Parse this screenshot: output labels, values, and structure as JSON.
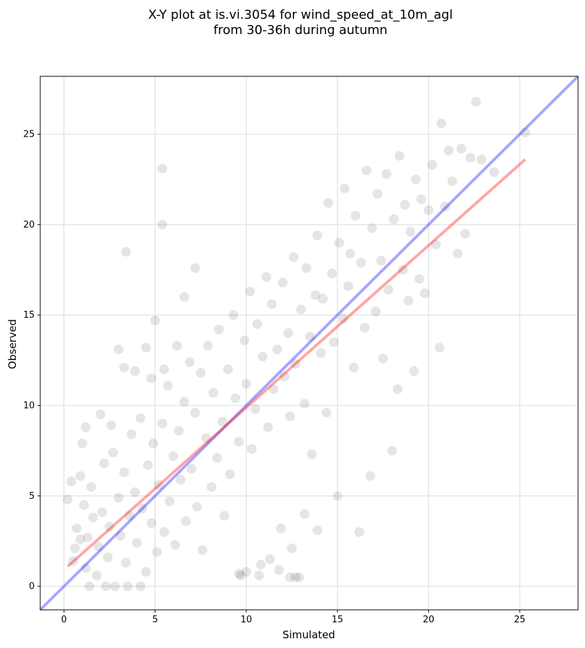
{
  "chart_data": {
    "type": "scatter",
    "title_line1": "X-Y plot at is.vi.3054 for wind_speed_at_10m_agl",
    "title_line2": "from 30-36h during autumn",
    "xlabel": "Simulated",
    "ylabel": "Observed",
    "xlim": [
      -1.3,
      28.2
    ],
    "ylim": [
      -1.3,
      28.2
    ],
    "xticks": [
      0,
      5,
      10,
      15,
      20,
      25
    ],
    "yticks": [
      0,
      5,
      10,
      15,
      20,
      25
    ],
    "grid": true,
    "point_color": "#000000",
    "point_alpha": 0.1,
    "regression_line": {
      "color": "#ff0000",
      "alpha": 0.35,
      "x": [
        0.2,
        25.3
      ],
      "y": [
        1.1,
        23.6
      ]
    },
    "identity_line": {
      "color": "#0000ff",
      "alpha": 0.35,
      "x": [
        -1.3,
        28.2
      ],
      "y": [
        -1.3,
        28.2
      ]
    },
    "points": [
      [
        0.2,
        4.8
      ],
      [
        0.4,
        5.8
      ],
      [
        0.6,
        2.1
      ],
      [
        0.7,
        3.2
      ],
      [
        0.9,
        6.1
      ],
      [
        1.1,
        4.5
      ],
      [
        1.2,
        1.0
      ],
      [
        1.3,
        2.7
      ],
      [
        1.5,
        5.5
      ],
      [
        1.6,
        3.8
      ],
      [
        1.8,
        0.6
      ],
      [
        1.9,
        2.2
      ],
      [
        2.1,
        4.1
      ],
      [
        2.2,
        6.8
      ],
      [
        2.4,
        1.6
      ],
      [
        2.5,
        3.3
      ],
      [
        2.7,
        7.4
      ],
      [
        2.8,
        0.0
      ],
      [
        3.0,
        4.9
      ],
      [
        3.1,
        2.8
      ],
      [
        3.3,
        6.3
      ],
      [
        3.4,
        1.3
      ],
      [
        3.6,
        3.9
      ],
      [
        3.7,
        8.4
      ],
      [
        3.9,
        5.2
      ],
      [
        4.0,
        2.4
      ],
      [
        4.2,
        9.3
      ],
      [
        4.3,
        4.3
      ],
      [
        4.5,
        0.8
      ],
      [
        4.6,
        6.7
      ],
      [
        4.8,
        3.5
      ],
      [
        4.9,
        7.9
      ],
      [
        5.1,
        1.9
      ],
      [
        5.2,
        5.6
      ],
      [
        5.4,
        9.0
      ],
      [
        5.5,
        3.0
      ],
      [
        5.7,
        11.1
      ],
      [
        5.8,
        4.7
      ],
      [
        6.0,
        7.2
      ],
      [
        6.1,
        2.3
      ],
      [
        6.3,
        8.6
      ],
      [
        6.4,
        5.9
      ],
      [
        6.6,
        10.2
      ],
      [
        6.7,
        3.6
      ],
      [
        6.9,
        12.4
      ],
      [
        7.0,
        6.5
      ],
      [
        7.2,
        9.6
      ],
      [
        7.3,
        4.4
      ],
      [
        7.5,
        11.8
      ],
      [
        7.6,
        2.0
      ],
      [
        7.8,
        8.2
      ],
      [
        7.9,
        13.3
      ],
      [
        8.1,
        5.5
      ],
      [
        8.2,
        10.7
      ],
      [
        8.4,
        7.1
      ],
      [
        8.5,
        14.2
      ],
      [
        8.7,
        9.1
      ],
      [
        8.8,
        3.9
      ],
      [
        9.0,
        12.0
      ],
      [
        9.1,
        6.2
      ],
      [
        9.3,
        15.0
      ],
      [
        9.4,
        10.4
      ],
      [
        9.6,
        8.0
      ],
      [
        9.7,
        0.6
      ],
      [
        9.9,
        13.6
      ],
      [
        10.0,
        11.2
      ],
      [
        10.2,
        16.3
      ],
      [
        10.3,
        7.6
      ],
      [
        10.5,
        9.8
      ],
      [
        10.6,
        14.5
      ],
      [
        10.8,
        1.2
      ],
      [
        10.9,
        12.7
      ],
      [
        11.1,
        17.1
      ],
      [
        11.2,
        8.8
      ],
      [
        11.4,
        15.6
      ],
      [
        11.5,
        10.9
      ],
      [
        11.7,
        13.1
      ],
      [
        11.8,
        0.9
      ],
      [
        12.0,
        16.8
      ],
      [
        12.1,
        11.6
      ],
      [
        12.3,
        14.0
      ],
      [
        12.4,
        9.4
      ],
      [
        12.6,
        18.2
      ],
      [
        12.7,
        12.3
      ],
      [
        12.9,
        0.5
      ],
      [
        13.0,
        15.3
      ],
      [
        13.2,
        10.1
      ],
      [
        13.3,
        17.6
      ],
      [
        13.5,
        13.8
      ],
      [
        13.6,
        7.3
      ],
      [
        13.8,
        16.1
      ],
      [
        13.9,
        19.4
      ],
      [
        14.1,
        12.9
      ],
      [
        14.2,
        15.9
      ],
      [
        14.4,
        9.6
      ],
      [
        14.5,
        21.2
      ],
      [
        14.7,
        17.3
      ],
      [
        14.8,
        13.5
      ],
      [
        15.0,
        5.0
      ],
      [
        15.1,
        19.0
      ],
      [
        15.3,
        14.8
      ],
      [
        15.4,
        22.0
      ],
      [
        15.6,
        16.6
      ],
      [
        15.7,
        18.4
      ],
      [
        15.9,
        12.1
      ],
      [
        16.0,
        20.5
      ],
      [
        16.2,
        3.0
      ],
      [
        16.3,
        17.9
      ],
      [
        16.5,
        14.3
      ],
      [
        16.6,
        23.0
      ],
      [
        16.8,
        6.1
      ],
      [
        16.9,
        19.8
      ],
      [
        17.1,
        15.2
      ],
      [
        17.2,
        21.7
      ],
      [
        17.4,
        18.0
      ],
      [
        17.5,
        12.6
      ],
      [
        17.7,
        22.8
      ],
      [
        17.8,
        16.4
      ],
      [
        18.0,
        7.5
      ],
      [
        18.1,
        20.3
      ],
      [
        18.3,
        10.9
      ],
      [
        18.4,
        23.8
      ],
      [
        18.6,
        17.5
      ],
      [
        18.7,
        21.1
      ],
      [
        18.9,
        15.8
      ],
      [
        19.0,
        19.6
      ],
      [
        19.2,
        11.9
      ],
      [
        19.3,
        22.5
      ],
      [
        19.5,
        17.0
      ],
      [
        19.6,
        21.4
      ],
      [
        19.8,
        16.2
      ],
      [
        20.0,
        20.8
      ],
      [
        20.2,
        23.3
      ],
      [
        20.4,
        18.9
      ],
      [
        20.6,
        13.2
      ],
      [
        20.7,
        25.6
      ],
      [
        20.9,
        21.0
      ],
      [
        21.1,
        24.1
      ],
      [
        21.3,
        22.4
      ],
      [
        21.6,
        18.4
      ],
      [
        21.8,
        24.2
      ],
      [
        22.0,
        19.5
      ],
      [
        22.3,
        23.7
      ],
      [
        22.6,
        26.8
      ],
      [
        22.9,
        23.6
      ],
      [
        23.6,
        22.9
      ],
      [
        25.3,
        25.1
      ],
      [
        5.4,
        23.1
      ],
      [
        3.4,
        18.5
      ],
      [
        5.4,
        20.0
      ],
      [
        1.4,
        0.0
      ],
      [
        2.3,
        0.0
      ],
      [
        3.5,
        0.0
      ],
      [
        4.2,
        0.0
      ],
      [
        0.9,
        2.6
      ],
      [
        0.5,
        1.4
      ],
      [
        1.0,
        7.9
      ],
      [
        1.2,
        8.8
      ],
      [
        2.0,
        9.5
      ],
      [
        2.6,
        8.9
      ],
      [
        3.3,
        12.1
      ],
      [
        3.0,
        13.1
      ],
      [
        3.9,
        11.9
      ],
      [
        4.5,
        13.2
      ],
      [
        4.8,
        11.5
      ],
      [
        5.0,
        14.7
      ],
      [
        5.5,
        12.0
      ],
      [
        6.2,
        13.3
      ],
      [
        6.6,
        16.0
      ],
      [
        7.2,
        17.6
      ],
      [
        9.6,
        0.7
      ],
      [
        10.0,
        0.8
      ],
      [
        10.7,
        0.6
      ],
      [
        11.3,
        1.5
      ],
      [
        12.4,
        0.5
      ],
      [
        12.7,
        0.5
      ],
      [
        13.2,
        4.0
      ],
      [
        13.9,
        3.1
      ],
      [
        12.5,
        2.1
      ],
      [
        11.9,
        3.2
      ]
    ]
  }
}
